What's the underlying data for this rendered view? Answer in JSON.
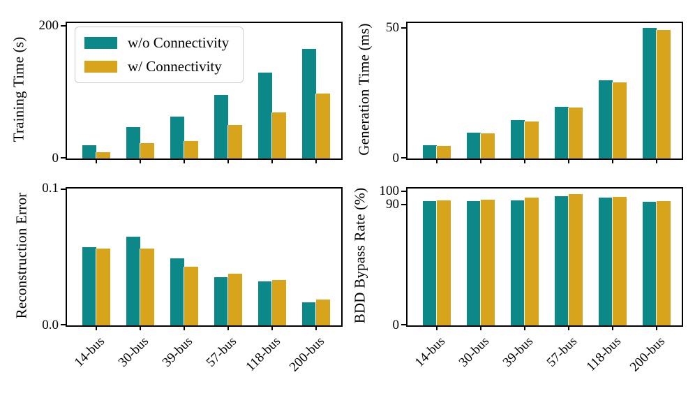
{
  "figure": {
    "background": "#ffffff",
    "axis_color": "#000000",
    "series_colors": {
      "without": "#0d8889",
      "with": "#d8a41c"
    }
  },
  "categories": [
    "14-bus",
    "30-bus",
    "39-bus",
    "57-bus",
    "118-bus",
    "200-bus"
  ],
  "chart_data": [
    {
      "type": "bar",
      "title": "",
      "ylabel": "Training Time (s)",
      "xlabel": "",
      "categories": [
        "14-bus",
        "30-bus",
        "39-bus",
        "57-bus",
        "118-bus",
        "200-bus"
      ],
      "series": [
        {
          "name": "w/o Connectivity",
          "color": "#0d8889",
          "values": [
            20,
            47,
            63,
            96,
            129,
            165
          ]
        },
        {
          "name": "w/ Connectivity",
          "color": "#d8a41c",
          "values": [
            9,
            23,
            26,
            51,
            69,
            98
          ]
        }
      ],
      "ylim": [
        0,
        204
      ],
      "yticks": [
        {
          "value": 0,
          "label": "0"
        },
        {
          "value": 200,
          "label": "200"
        }
      ],
      "show_xticklabels": false,
      "legend_position": "upper-left",
      "grid": false
    },
    {
      "type": "bar",
      "title": "",
      "ylabel": "Generation Time (ms)",
      "xlabel": "",
      "categories": [
        "14-bus",
        "30-bus",
        "39-bus",
        "57-bus",
        "118-bus",
        "200-bus"
      ],
      "series": [
        {
          "name": "w/o Connectivity",
          "color": "#0d8889",
          "values": [
            5.0,
            9.8,
            14.7,
            19.8,
            30.0,
            50.0
          ]
        },
        {
          "name": "w/ Connectivity",
          "color": "#d8a41c",
          "values": [
            4.9,
            9.7,
            14.3,
            19.5,
            29.2,
            49.3
          ]
        }
      ],
      "ylim": [
        0,
        52
      ],
      "yticks": [
        {
          "value": 0,
          "label": "0"
        },
        {
          "value": 50,
          "label": "50"
        }
      ],
      "show_xticklabels": false,
      "legend_position": null,
      "grid": false
    },
    {
      "type": "bar",
      "title": "",
      "ylabel": "Reconstruction Error",
      "xlabel": "",
      "categories": [
        "14-bus",
        "30-bus",
        "39-bus",
        "57-bus",
        "118-bus",
        "200-bus"
      ],
      "series": [
        {
          "name": "w/o Connectivity",
          "color": "#0d8889",
          "values": [
            0.057,
            0.065,
            0.049,
            0.035,
            0.032,
            0.017
          ]
        },
        {
          "name": "w/ Connectivity",
          "color": "#d8a41c",
          "values": [
            0.056,
            0.056,
            0.043,
            0.038,
            0.033,
            0.019
          ]
        }
      ],
      "ylim": [
        0,
        0.1
      ],
      "yticks": [
        {
          "value": 0,
          "label": "0.0"
        },
        {
          "value": 0.1,
          "label": "0.1"
        }
      ],
      "show_xticklabels": true,
      "legend_position": null,
      "grid": false
    },
    {
      "type": "bar",
      "title": "",
      "ylabel": "BDD Bypass Rate (%)",
      "xlabel": "",
      "categories": [
        "14-bus",
        "30-bus",
        "39-bus",
        "57-bus",
        "118-bus",
        "200-bus"
      ],
      "series": [
        {
          "name": "w/o Connectivity",
          "color": "#0d8889",
          "values": [
            92.5,
            92.8,
            93.2,
            96.3,
            95.3,
            92.2
          ]
        },
        {
          "name": "w/ Connectivity",
          "color": "#d8a41c",
          "values": [
            93.2,
            93.5,
            95.0,
            97.8,
            95.6,
            92.6
          ]
        }
      ],
      "ylim": [
        0,
        102
      ],
      "yticks": [
        {
          "value": 0,
          "label": "0"
        },
        {
          "value": 90,
          "label": "90"
        },
        {
          "value": 100,
          "label": "100"
        }
      ],
      "show_xticklabels": true,
      "legend_position": null,
      "grid": false
    }
  ]
}
